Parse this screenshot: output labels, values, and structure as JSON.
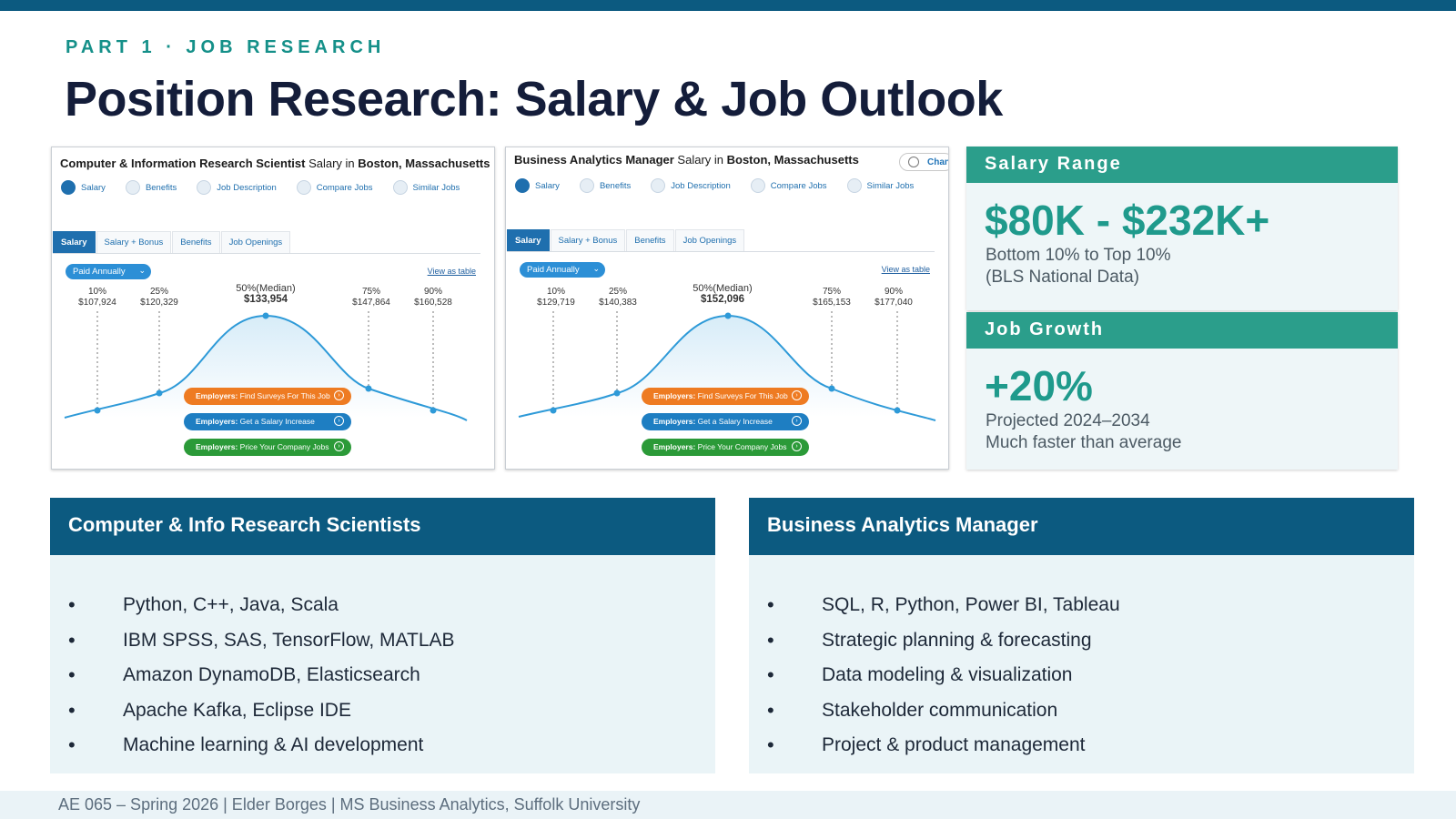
{
  "eyebrow": "PART 1   ·   JOB RESEARCH",
  "title": "Position Research: Salary & Job Outlook",
  "shots": [
    {
      "title_role": "Computer & Information Research Scientist",
      "title_mid": " Salary in ",
      "title_place": "Boston, Massachusetts",
      "change_label": "",
      "nav": [
        "Salary",
        "Benefits",
        "Job Description",
        "Compare Jobs",
        "Similar Jobs"
      ],
      "tabs": [
        "Salary",
        "Salary + Bonus",
        "Benefits",
        "Job Openings"
      ],
      "pay_select": "Paid Annually",
      "view_table": "View as table",
      "percentiles": [
        {
          "label": "10%",
          "value": "$107,924"
        },
        {
          "label": "25%",
          "value": "$120,329"
        },
        {
          "label": "50%(Median)",
          "value": "$133,954"
        },
        {
          "label": "75%",
          "value": "$147,864"
        },
        {
          "label": "90%",
          "value": "$160,528"
        }
      ],
      "employer_buttons": [
        {
          "prefix": "Employers:",
          "text": " Find Surveys For This Job"
        },
        {
          "prefix": "Employers:",
          "text": " Get a Salary Increase"
        },
        {
          "prefix": "Employers:",
          "text": " Price Your Company Jobs"
        }
      ]
    },
    {
      "title_role": "Business Analytics Manager",
      "title_mid": " Salary in ",
      "title_place": "Boston, Massachusetts",
      "change_label": "Chang",
      "nav": [
        "Salary",
        "Benefits",
        "Job Description",
        "Compare Jobs",
        "Similar Jobs"
      ],
      "tabs": [
        "Salary",
        "Salary + Bonus",
        "Benefits",
        "Job Openings"
      ],
      "pay_select": "Paid Annually",
      "view_table": "View as table",
      "percentiles": [
        {
          "label": "10%",
          "value": "$129,719"
        },
        {
          "label": "25%",
          "value": "$140,383"
        },
        {
          "label": "50%(Median)",
          "value": "$152,096"
        },
        {
          "label": "75%",
          "value": "$165,153"
        },
        {
          "label": "90%",
          "value": "$177,040"
        }
      ],
      "employer_buttons": [
        {
          "prefix": "Employers:",
          "text": " Find Surveys For This Job"
        },
        {
          "prefix": "Employers:",
          "text": " Get a Salary Increase"
        },
        {
          "prefix": "Employers:",
          "text": " Price Your Company Jobs"
        }
      ]
    }
  ],
  "salary_range": {
    "heading": "Salary Range",
    "value": "$80K - $232K+",
    "line1": "Bottom 10% to Top 10%",
    "line2": "(BLS National Data)"
  },
  "job_growth": {
    "heading": "Job Growth",
    "value": "+20%",
    "line1": "Projected 2024–2034",
    "line2": "Much faster than average"
  },
  "cards": [
    {
      "heading": "Computer & Info Research Scientists",
      "items": [
        "Python, C++, Java, Scala",
        "IBM SPSS, SAS, TensorFlow, MATLAB",
        "Amazon DynamoDB, Elasticsearch",
        "Apache Kafka, Eclipse IDE",
        "Machine learning & AI development"
      ]
    },
    {
      "heading": "Business Analytics Manager",
      "items": [
        "SQL, R, Python, Power BI, Tableau",
        "Strategic planning & forecasting",
        "Data modeling & visualization",
        "Stakeholder communication",
        "Project & product management"
      ]
    }
  ],
  "footer": "AE 065 – Spring 2026  |  Elder Borges  |  MS Business Analytics, Suffolk University",
  "colors": {
    "navy": "#0c5a80",
    "teal": "#2b9e8b",
    "accent_text": "#1f9a8c"
  }
}
